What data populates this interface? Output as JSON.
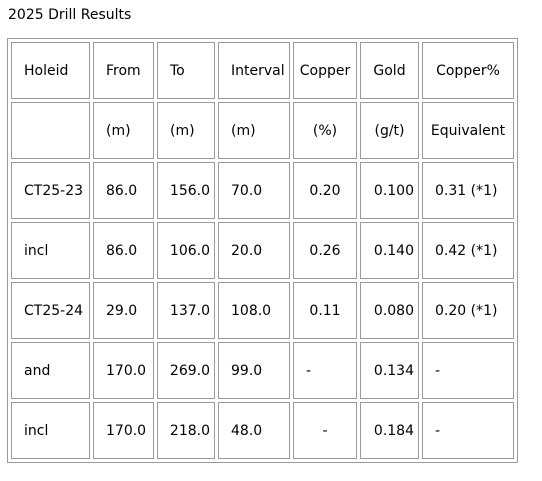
{
  "title": "2025 Drill Results",
  "columns": [
    {
      "header": "Holeid",
      "unit": ""
    },
    {
      "header": "From",
      "unit": "(m)"
    },
    {
      "header": "To",
      "unit": "(m)"
    },
    {
      "header": "Interval",
      "unit": "(m)"
    },
    {
      "header": "Copper",
      "unit": "(%)"
    },
    {
      "header": "Gold",
      "unit": "(g/t)"
    },
    {
      "header": "Copper%",
      "unit": "Equivalent"
    }
  ],
  "rows": [
    [
      "CT25-23",
      "86.0",
      "156.0",
      "70.0",
      "0.20",
      "0.100",
      "0.31 (*1)"
    ],
    [
      "incl",
      "86.0",
      "106.0",
      "20.0",
      "0.26",
      "0.140",
      "0.42 (*1)"
    ],
    [
      "CT25-24",
      "29.0",
      "137.0",
      "108.0",
      "0.11",
      "0.080",
      "0.20 (*1)"
    ],
    [
      "and",
      "170.0",
      "269.0",
      "99.0",
      "-",
      "0.134",
      "-"
    ],
    [
      "incl",
      "170.0",
      "218.0",
      "48.0",
      "-",
      "0.184",
      "-"
    ]
  ]
}
